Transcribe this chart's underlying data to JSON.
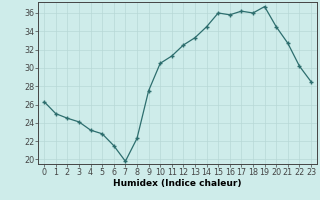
{
  "x": [
    0,
    1,
    2,
    3,
    4,
    5,
    6,
    7,
    8,
    9,
    10,
    11,
    12,
    13,
    14,
    15,
    16,
    17,
    18,
    19,
    20,
    21,
    22,
    23
  ],
  "y": [
    26.3,
    25.0,
    24.5,
    24.1,
    23.2,
    22.8,
    21.5,
    19.8,
    22.3,
    27.5,
    30.5,
    31.3,
    32.5,
    33.3,
    34.5,
    36.0,
    35.8,
    36.2,
    36.0,
    36.7,
    34.5,
    32.7,
    30.2,
    28.5
  ],
  "line_color": "#2d6e6e",
  "marker": "+",
  "marker_size": 3.5,
  "marker_linewidth": 1.0,
  "bg_color": "#ceecea",
  "grid_color_major": "#b8d8d6",
  "grid_color_minor": "#d8eeec",
  "xlabel": "Humidex (Indice chaleur)",
  "ylabel": "",
  "ylim": [
    19.5,
    37.2
  ],
  "xlim": [
    -0.5,
    23.5
  ],
  "yticks": [
    20,
    22,
    24,
    26,
    28,
    30,
    32,
    34,
    36
  ],
  "xticks": [
    0,
    1,
    2,
    3,
    4,
    5,
    6,
    7,
    8,
    9,
    10,
    11,
    12,
    13,
    14,
    15,
    16,
    17,
    18,
    19,
    20,
    21,
    22,
    23
  ],
  "xlabel_fontsize": 6.5,
  "tick_fontsize": 5.8,
  "axis_color": "#444444",
  "linewidth": 0.9
}
